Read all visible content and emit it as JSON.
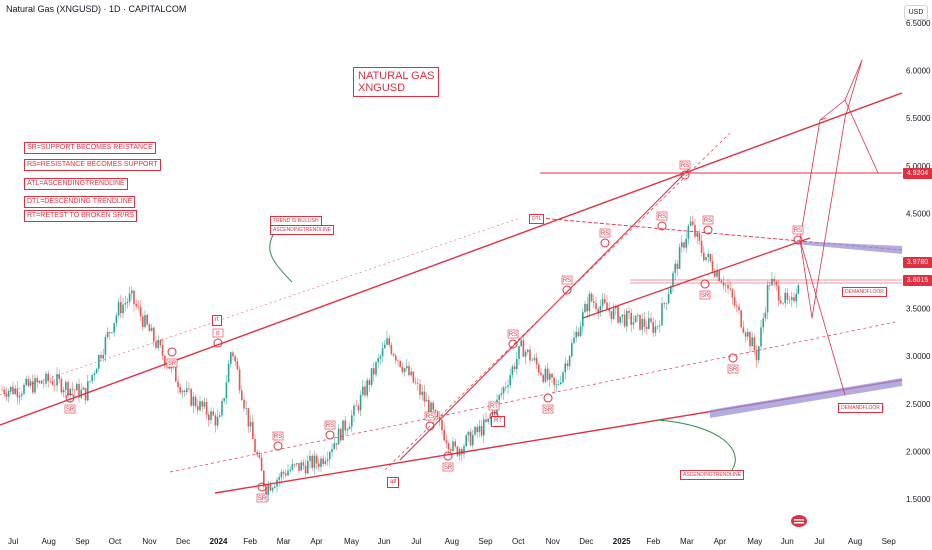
{
  "header": {
    "title": "Natural Gas (XNGUSD) · 1D · CAPITALCOM",
    "currency_button": "USD"
  },
  "annotation_box": {
    "line1": "NATURAL GAS",
    "line2": "XNGUSD"
  },
  "legend_notes": [
    "SR=SUPPORT BECOMES REISTANCE",
    "RS=RESISTANCE BECOMES SUPPORT",
    "ATL=ASCENDINGTRENDLINE",
    "DTL=DESCENDING TRENDLINE",
    "RT=RETEST TO BROKEN SR/RS"
  ],
  "chart_notes": {
    "trend_is_bullish": "TREND IS BULLISH",
    "ascendingtrendline_top": "ASCENDINGTRENDLINE",
    "ascendingtrendline_bottom": "ASCENDINGTRENDLINE",
    "demandfloor_upper": "DEMANDFLOOR",
    "demandfloor_lower": "DEMANDFLOOR",
    "dtl": "DTL",
    "atl": "atl",
    "rt_upper": "rt",
    "rt_lower": "RT"
  },
  "price_tags": {
    "upper": {
      "value": "4.9204",
      "color": "#e03040"
    },
    "middle": {
      "value": "3.9780",
      "color": "#e03040"
    },
    "lower": {
      "value": "3.8015",
      "color": "#e03040"
    }
  },
  "colors": {
    "up_candle": "#26a69a",
    "down_candle": "#ef5350",
    "annotation": "#e03040",
    "zone_fill": "#9b8fd6"
  },
  "chart_data": {
    "type": "candlestick",
    "title": "Natural Gas (XNGUSD) · 1D · CAPITALCOM",
    "y_axis": {
      "ticks": [
        "1.5000",
        "2.0000",
        "2.5000",
        "3.0000",
        "3.5000",
        "4.0000",
        "4.5000",
        "5.0000",
        "5.5000",
        "6.0000",
        "6.5000"
      ],
      "range": [
        1.3,
        6.6
      ],
      "unit": "USD"
    },
    "x_axis": {
      "ticks": [
        "Jul",
        "Aug",
        "Sep",
        "Oct",
        "Nov",
        "Dec",
        "2024",
        "Feb",
        "Mar",
        "Apr",
        "May",
        "Jun",
        "Jul",
        "Aug",
        "Sep",
        "Oct",
        "Nov",
        "Dec",
        "2025",
        "Feb",
        "Mar",
        "Apr",
        "May",
        "Jun",
        "Jul",
        "Aug",
        "Sep"
      ]
    },
    "price_path": [
      {
        "x": "Jul 2023",
        "y": 2.65
      },
      {
        "x": "Aug 2023",
        "y": 2.75
      },
      {
        "x": "Sep 2023",
        "y": 2.6
      },
      {
        "x": "Sep 2023",
        "y": 2.95
      },
      {
        "x": "Oct 2023",
        "y": 3.5
      },
      {
        "x": "Oct 2023",
        "y": 3.62
      },
      {
        "x": "Nov 2023",
        "y": 3.2
      },
      {
        "x": "Dec 2023",
        "y": 2.6
      },
      {
        "x": "2024",
        "y": 2.3
      },
      {
        "x": "2024",
        "y": 3.1
      },
      {
        "x": "Feb 2024",
        "y": 2.1
      },
      {
        "x": "Feb 2024",
        "y": 1.62
      },
      {
        "x": "Mar 2024",
        "y": 1.8
      },
      {
        "x": "Apr 2024",
        "y": 1.9
      },
      {
        "x": "May 2024",
        "y": 2.4
      },
      {
        "x": "Jun 2024",
        "y": 3.15
      },
      {
        "x": "Jul 2024",
        "y": 2.6
      },
      {
        "x": "Aug 2024",
        "y": 2.0
      },
      {
        "x": "Sep 2024",
        "y": 2.3
      },
      {
        "x": "Oct 2024",
        "y": 3.1
      },
      {
        "x": "Nov 2024",
        "y": 2.65
      },
      {
        "x": "Dec 2024",
        "y": 3.6
      },
      {
        "x": "2025",
        "y": 3.4
      },
      {
        "x": "Feb 2025",
        "y": 3.3
      },
      {
        "x": "Mar 2025",
        "y": 4.4
      },
      {
        "x": "Mar 2025",
        "y": 4.1
      },
      {
        "x": "Apr 2025",
        "y": 3.8
      },
      {
        "x": "May 2025",
        "y": 3.0
      },
      {
        "x": "May 2025",
        "y": 3.8
      },
      {
        "x": "Jun 2025",
        "y": 3.5
      },
      {
        "x": "Jun 2025",
        "y": 4.0
      }
    ],
    "markers": [
      {
        "label": "SR",
        "x": "Sep 2023",
        "y": 2.55
      },
      {
        "label": "SR",
        "x": "Nov 2023",
        "y": 3.05
      },
      {
        "label": "rt",
        "x": "2024",
        "y": 3.12
      },
      {
        "label": "SR",
        "x": "Feb 2024",
        "y": 1.62
      },
      {
        "label": "RS",
        "x": "Mar 2024",
        "y": 2.05
      },
      {
        "label": "RS",
        "x": "Apr 2024",
        "y": 2.15
      },
      {
        "label": "RS",
        "x": "Jul 2024",
        "y": 2.25
      },
      {
        "label": "SR",
        "x": "Aug 2024",
        "y": 1.95
      },
      {
        "label": "RS",
        "x": "Oct 2024",
        "y": 3.12
      },
      {
        "label": "RT",
        "x": "Oct 2024",
        "y": 2.45
      },
      {
        "label": "RS",
        "x": "Dec 2024",
        "y": 3.7
      },
      {
        "label": "SR",
        "x": "Dec 2024",
        "y": 2.65
      },
      {
        "label": "RS",
        "x": "2025",
        "y": 4.05
      },
      {
        "label": "RS",
        "x": "Feb 2025",
        "y": 4.35
      },
      {
        "label": "RS",
        "x": "Mar 2025",
        "y": 4.92
      },
      {
        "label": "RS",
        "x": "Apr 2025",
        "y": 4.3
      },
      {
        "label": "SR",
        "x": "Apr 2025",
        "y": 3.8
      },
      {
        "label": "SR",
        "x": "May 2025",
        "y": 3.05
      },
      {
        "label": "RS",
        "x": "Jun 2025",
        "y": 4.2
      }
    ],
    "horizontal_levels": [
      4.9204,
      3.978,
      3.8015
    ],
    "grid": false,
    "legend_position": "top-left"
  }
}
